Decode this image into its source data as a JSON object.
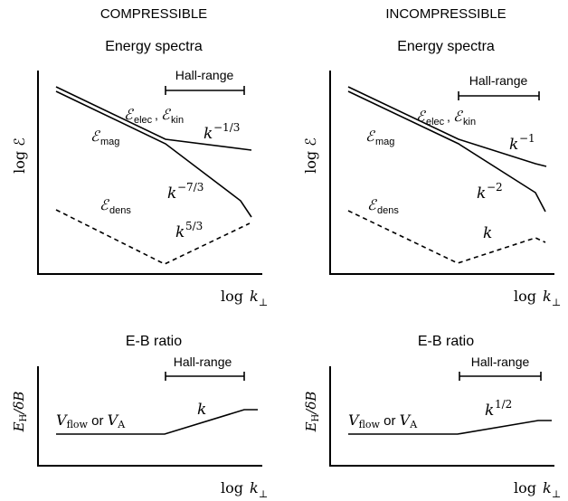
{
  "columns": {
    "left": {
      "header": "COMPRESSIBLE",
      "spectra_title": "Energy spectra",
      "hall_range": "Hall-range",
      "ylabel": "log ℰ",
      "xlabel_log": "log",
      "xlabel_k": "k",
      "xlabel_sub": "⊥",
      "elec_kin_label": {
        "sym1": "ℰ",
        "sub1": "elec",
        "sep": ", ",
        "sym2": "ℰ",
        "sub2": "kin"
      },
      "mag_label": {
        "sym": "ℰ",
        "sub": "mag"
      },
      "dens_label": {
        "sym": "ℰ",
        "sub": "dens"
      },
      "slope_upper": {
        "base": "k",
        "exp": "−1/3"
      },
      "slope_lower": {
        "base": "k",
        "exp": "−7/3"
      },
      "slope_dens": {
        "base": "k",
        "exp": "5/3"
      },
      "ratio_title": "E-B ratio",
      "ratio_hall_range": "Hall-range",
      "ratio_slope": {
        "base": "k",
        "exp": ""
      }
    },
    "right": {
      "header": "INCOMPRESSIBLE",
      "spectra_title": "Energy spectra",
      "hall_range": "Hall-range",
      "ylabel": "log ℰ",
      "xlabel_log": "log",
      "xlabel_k": "k",
      "xlabel_sub": "⊥",
      "elec_kin_label": {
        "sym1": "ℰ",
        "sub1": "elec",
        "sep": ", ",
        "sym2": "ℰ",
        "sub2": "kin"
      },
      "mag_label": {
        "sym": "ℰ",
        "sub": "mag"
      },
      "dens_label": {
        "sym": "ℰ",
        "sub": "dens"
      },
      "slope_upper": {
        "base": "k",
        "exp": "−1"
      },
      "slope_lower": {
        "base": "k",
        "exp": "−2"
      },
      "slope_dens": {
        "base": "k",
        "exp": ""
      },
      "ratio_title": "E-B ratio",
      "ratio_hall_range": "Hall-range",
      "ratio_slope": {
        "base": "k",
        "exp": "1/2"
      }
    }
  },
  "ratio_axis": {
    "E": "E",
    "Esub": "H",
    "slash": "/δ",
    "B": "B"
  },
  "flow_label": {
    "V1": "V",
    "sub1": "flow",
    "or": " or ",
    "V2": "V",
    "sub2": "A"
  }
}
